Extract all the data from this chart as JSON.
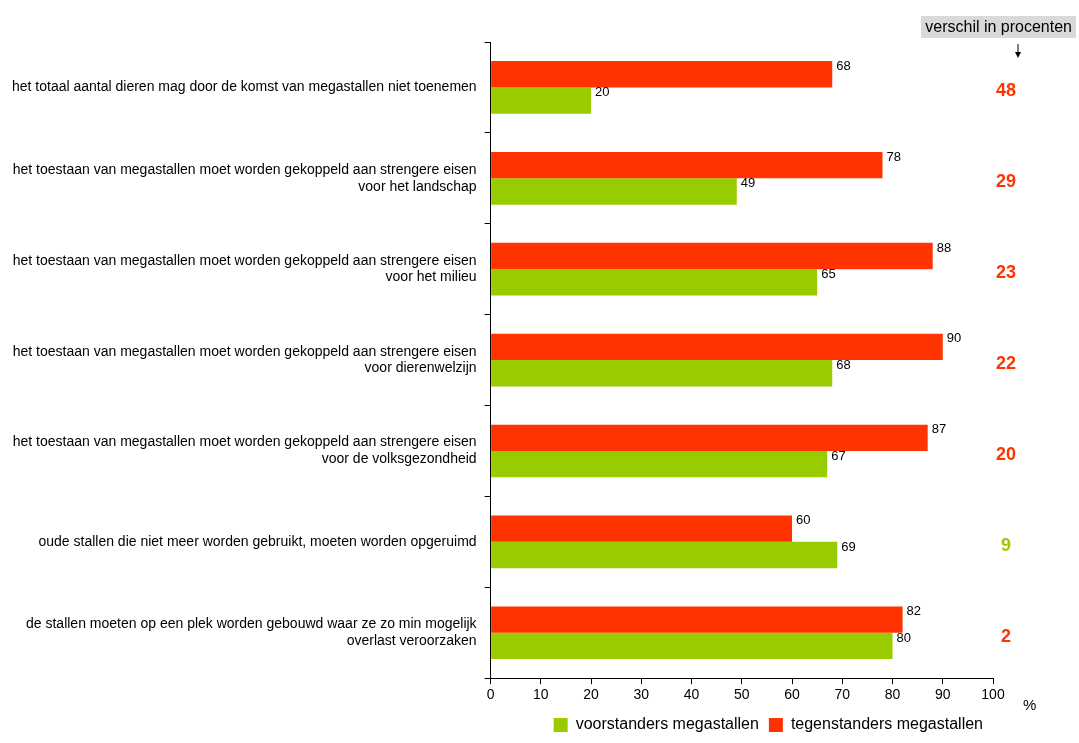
{
  "chart_data": {
    "type": "bar",
    "orientation": "horizontal",
    "categories": [
      "het totaal aantal dieren mag door de komst van megastallen niet toenemen",
      "het toestaan van megastallen moet worden gekoppeld aan strengere eisen voor het landschap",
      "het toestaan van megastallen moet worden gekoppeld aan strengere eisen voor het milieu",
      "het toestaan van megastallen moet worden gekoppeld aan strengere eisen voor dierenwelzijn",
      "het toestaan van megastallen moet worden gekoppeld aan strengere eisen voor de volksgezondheid",
      "oude stallen die niet meer worden gebruikt, moeten worden opgeruimd",
      "de stallen moeten op een plek worden gebouwd waar ze zo min mogelijk overlast veroorzaken"
    ],
    "series": [
      {
        "name": "voorstanders megastallen",
        "color": "#99cc00",
        "values": [
          20,
          49,
          65,
          68,
          67,
          69,
          80
        ]
      },
      {
        "name": "tegenstanders megastallen",
        "color": "#ff3300",
        "values": [
          68,
          78,
          88,
          90,
          87,
          60,
          82
        ]
      }
    ],
    "xlim": [
      0,
      100
    ],
    "xticks": [
      0,
      10,
      20,
      30,
      40,
      50,
      60,
      70,
      80,
      90,
      100
    ],
    "xlabel": "%",
    "data_labels": true,
    "legend": "bottom",
    "annotations": [
      "verschil in procenten",
      "48",
      "29",
      "23",
      "22",
      "20",
      "9",
      "2"
    ]
  }
}
